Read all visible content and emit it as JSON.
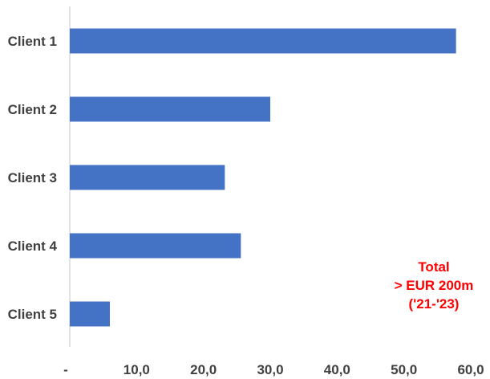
{
  "chart_data": {
    "type": "bar",
    "orientation": "horizontal",
    "categories": [
      "Client 1",
      "Client 2",
      "Client 3",
      "Client 4",
      "Client 5"
    ],
    "values": [
      57.8,
      30.0,
      23.2,
      25.6,
      6.0
    ],
    "xlim": [
      0,
      60
    ],
    "x_ticks": [
      0,
      10,
      20,
      30,
      40,
      50,
      60
    ],
    "x_tick_labels": [
      "-",
      "10,0",
      "20,0",
      "30,0",
      "40,0",
      "50,0",
      "60,0"
    ],
    "title": "",
    "xlabel": "",
    "ylabel": "",
    "grid": false,
    "legend": "none",
    "annotation": {
      "lines": [
        "Total",
        "> EUR 200m",
        "('21-'23)"
      ],
      "placement": "bottom-right"
    },
    "colors": {
      "bar": "#4472C4",
      "axis": "#D9D9D9",
      "label": "#404040",
      "annotation": "#FF0000"
    }
  }
}
